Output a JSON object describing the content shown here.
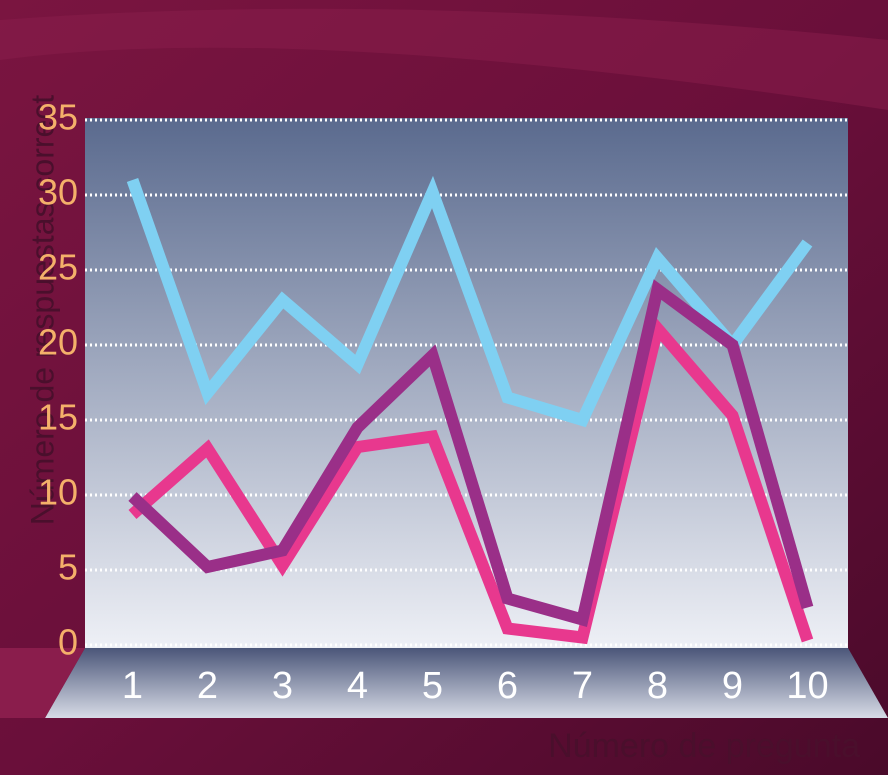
{
  "chart_data": {
    "type": "line",
    "x_label": "Número de pregunta",
    "y_label": "Número de respuestas correct",
    "categories": [
      "1",
      "2",
      "3",
      "4",
      "5",
      "6",
      "7",
      "8",
      "9",
      "10"
    ],
    "series": [
      {
        "color": "#7fd0f2",
        "values": [
          31,
          16.8,
          23,
          18.7,
          30.2,
          16.5,
          15,
          25.8,
          20,
          26.8
        ]
      },
      {
        "color": "#e8388e",
        "values": [
          8.7,
          13.1,
          5.3,
          13.2,
          13.9,
          1.1,
          0.5,
          21.1,
          15.3,
          0.3
        ]
      },
      {
        "color": "#9a2f88",
        "values": [
          9.9,
          5.2,
          6.3,
          14.5,
          19.3,
          3.1,
          1.7,
          23.7,
          20,
          2.5
        ]
      }
    ],
    "ylim": [
      0,
      35
    ],
    "yticks": [
      0,
      5,
      10,
      15,
      20,
      25,
      30,
      35
    ],
    "grid": true
  }
}
